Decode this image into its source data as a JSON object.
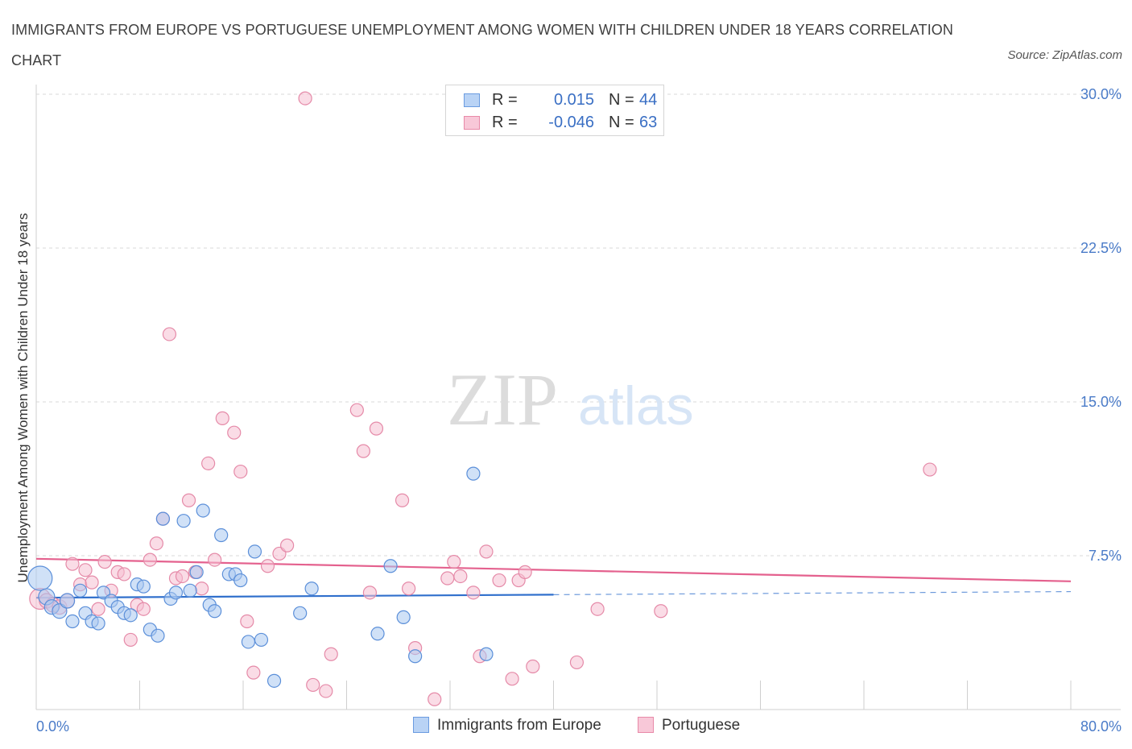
{
  "title": "IMMIGRANTS FROM EUROPE VS PORTUGUESE UNEMPLOYMENT AMONG WOMEN WITH CHILDREN UNDER 18 YEARS CORRELATION CHART",
  "source": "Source: ZipAtlas.com",
  "watermark": {
    "zip": "ZIP",
    "atlas": "atlas"
  },
  "legend": {
    "r_label": "R =",
    "n_label": "N =",
    "rows": [
      {
        "r": "0.015",
        "n": "44",
        "swatch_fill": "#b9d3f5",
        "swatch_border": "#6a9be0"
      },
      {
        "r": "-0.046",
        "n": "63",
        "swatch_fill": "#f8c8d8",
        "swatch_border": "#e889a8"
      }
    ]
  },
  "colors": {
    "blue_fill": "#a9c8f0",
    "blue_stroke": "#5b8fd9",
    "blue_line": "#2f6fcc",
    "pink_fill": "#f6c0d2",
    "pink_stroke": "#e58aa8",
    "pink_line": "#e4618e",
    "grid": "#d9d9d9",
    "tick_text": "#4a7bc8"
  },
  "chart_data": {
    "type": "scatter",
    "title": "IMMIGRANTS FROM EUROPE VS PORTUGUESE UNEMPLOYMENT AMONG WOMEN WITH CHILDREN UNDER 18 YEARS CORRELATION CHART",
    "xlabel": "",
    "ylabel": "Unemployment Among Women with Children Under 18 years",
    "xlim": [
      0,
      80
    ],
    "ylim": [
      0,
      30
    ],
    "x_tick_labels": [
      "0.0%",
      "80.0%"
    ],
    "y_ticks": [
      7.5,
      15.0,
      22.5,
      30.0
    ],
    "y_tick_labels": [
      "7.5%",
      "15.0%",
      "22.5%",
      "30.0%"
    ],
    "grid": "horizontal dashed",
    "legend_position": "bottom-center",
    "series": [
      {
        "name": "Immigrants from Europe",
        "color": "blue",
        "trend": {
          "x": [
            0,
            40
          ],
          "y": [
            5.45,
            5.6
          ],
          "extended_to_x": 80,
          "extended_y": 5.75
        },
        "points": [
          [
            0.3,
            6.4,
            26
          ],
          [
            0.8,
            5.5,
            16
          ],
          [
            1.2,
            5.0,
            14
          ],
          [
            1.8,
            4.8,
            14
          ],
          [
            2.4,
            5.3,
            14
          ],
          [
            2.8,
            4.3,
            12
          ],
          [
            3.4,
            5.8,
            12
          ],
          [
            3.8,
            4.7,
            12
          ],
          [
            4.3,
            4.3,
            12
          ],
          [
            4.8,
            4.2,
            12
          ],
          [
            5.2,
            5.7,
            12
          ],
          [
            5.8,
            5.3,
            12
          ],
          [
            6.3,
            5.0,
            12
          ],
          [
            6.8,
            4.7,
            12
          ],
          [
            7.3,
            4.6,
            12
          ],
          [
            7.8,
            6.1,
            12
          ],
          [
            8.3,
            6.0,
            12
          ],
          [
            8.8,
            3.9,
            12
          ],
          [
            9.4,
            3.6,
            12
          ],
          [
            9.8,
            9.3,
            12
          ],
          [
            10.4,
            5.4,
            12
          ],
          [
            10.8,
            5.7,
            12
          ],
          [
            11.4,
            9.2,
            12
          ],
          [
            11.9,
            5.8,
            12
          ],
          [
            12.4,
            6.7,
            12
          ],
          [
            12.9,
            9.7,
            12
          ],
          [
            13.4,
            5.1,
            12
          ],
          [
            13.8,
            4.8,
            12
          ],
          [
            14.3,
            8.5,
            12
          ],
          [
            14.9,
            6.6,
            12
          ],
          [
            15.4,
            6.6,
            12
          ],
          [
            15.8,
            6.3,
            12
          ],
          [
            16.4,
            3.3,
            12
          ],
          [
            16.9,
            7.7,
            12
          ],
          [
            17.4,
            3.4,
            12
          ],
          [
            18.4,
            1.4,
            12
          ],
          [
            20.4,
            4.7,
            12
          ],
          [
            21.3,
            5.9,
            12
          ],
          [
            26.4,
            3.7,
            12
          ],
          [
            27.4,
            7.0,
            12
          ],
          [
            28.4,
            4.5,
            12
          ],
          [
            29.3,
            2.6,
            12
          ],
          [
            33.8,
            11.5,
            12
          ],
          [
            34.8,
            2.7,
            12
          ]
        ]
      },
      {
        "name": "Portuguese",
        "color": "pink",
        "trend": {
          "x": [
            0,
            80
          ],
          "y": [
            7.35,
            6.25
          ]
        },
        "points": [
          [
            0.3,
            5.4,
            22
          ],
          [
            0.8,
            5.3,
            14
          ],
          [
            1.3,
            5.1,
            14
          ],
          [
            1.8,
            5.0,
            14
          ],
          [
            2.4,
            5.3,
            14
          ],
          [
            2.8,
            7.1,
            12
          ],
          [
            3.4,
            6.1,
            12
          ],
          [
            3.8,
            6.8,
            12
          ],
          [
            4.3,
            6.2,
            12
          ],
          [
            4.8,
            4.9,
            12
          ],
          [
            5.3,
            7.2,
            12
          ],
          [
            5.8,
            5.8,
            12
          ],
          [
            6.3,
            6.7,
            12
          ],
          [
            6.8,
            6.6,
            12
          ],
          [
            7.3,
            3.4,
            12
          ],
          [
            7.8,
            5.1,
            12
          ],
          [
            8.3,
            4.9,
            12
          ],
          [
            8.8,
            7.3,
            12
          ],
          [
            9.3,
            8.1,
            12
          ],
          [
            9.8,
            9.3,
            12
          ],
          [
            10.3,
            18.3,
            12
          ],
          [
            10.8,
            6.4,
            12
          ],
          [
            11.3,
            6.5,
            12
          ],
          [
            11.8,
            10.2,
            12
          ],
          [
            12.3,
            6.7,
            12
          ],
          [
            12.8,
            5.9,
            12
          ],
          [
            13.3,
            12.0,
            12
          ],
          [
            13.8,
            7.3,
            12
          ],
          [
            14.4,
            14.2,
            12
          ],
          [
            15.3,
            13.5,
            12
          ],
          [
            15.8,
            11.6,
            12
          ],
          [
            16.3,
            4.3,
            12
          ],
          [
            16.8,
            1.8,
            12
          ],
          [
            17.9,
            7.0,
            12
          ],
          [
            18.8,
            7.6,
            12
          ],
          [
            19.4,
            8.0,
            12
          ],
          [
            20.8,
            29.8,
            12
          ],
          [
            21.4,
            1.2,
            12
          ],
          [
            22.4,
            0.9,
            12
          ],
          [
            22.8,
            2.7,
            12
          ],
          [
            24.8,
            14.6,
            12
          ],
          [
            25.3,
            12.6,
            12
          ],
          [
            25.8,
            5.7,
            12
          ],
          [
            26.3,
            13.7,
            12
          ],
          [
            28.3,
            10.2,
            12
          ],
          [
            28.8,
            5.9,
            12
          ],
          [
            29.3,
            3.0,
            12
          ],
          [
            30.8,
            0.5,
            12
          ],
          [
            31.8,
            6.4,
            12
          ],
          [
            32.3,
            7.2,
            12
          ],
          [
            32.8,
            6.5,
            12
          ],
          [
            33.8,
            5.7,
            12
          ],
          [
            34.3,
            2.6,
            12
          ],
          [
            34.8,
            7.7,
            12
          ],
          [
            35.8,
            6.3,
            12
          ],
          [
            36.8,
            1.5,
            12
          ],
          [
            37.3,
            6.3,
            12
          ],
          [
            37.8,
            6.7,
            12
          ],
          [
            38.4,
            2.1,
            12
          ],
          [
            41.8,
            2.3,
            12
          ],
          [
            43.4,
            4.9,
            12
          ],
          [
            48.3,
            4.8,
            12
          ],
          [
            69.1,
            11.7,
            12
          ]
        ]
      }
    ]
  },
  "bottom_legend": [
    {
      "label": "Immigrants from Europe"
    },
    {
      "label": "Portuguese"
    }
  ]
}
